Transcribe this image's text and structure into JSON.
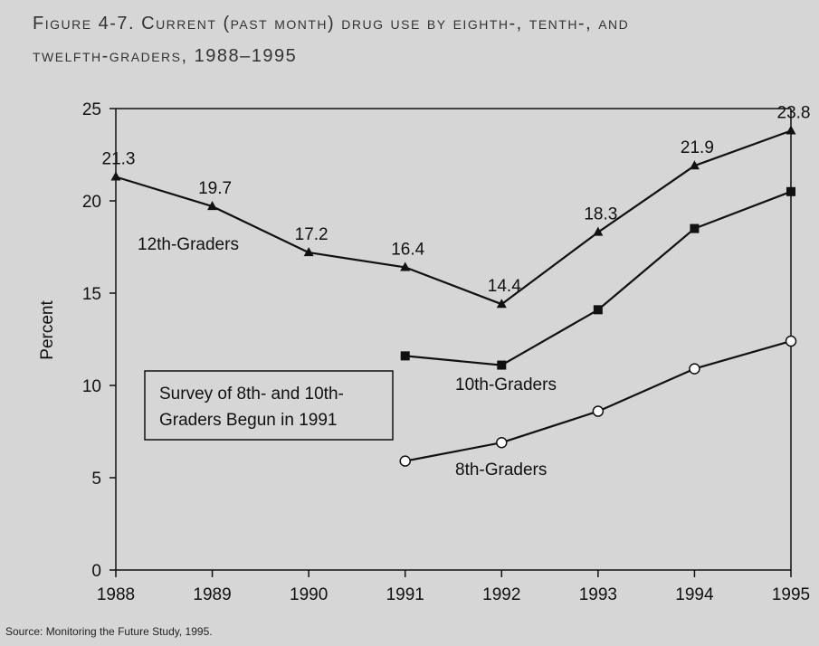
{
  "title": {
    "line1": "Figure 4-7. Current (past month) drug use by eighth-, tenth-, and",
    "line2": "twelfth-graders, 1988–1995"
  },
  "source": "Source: Monitoring the Future Study, 1995.",
  "note": {
    "line1": "Survey of 8th- and 10th-",
    "line2": "Graders Begun in 1991"
  },
  "chart_data": {
    "type": "line",
    "title": "Figure 4-7. Current (past month) drug use by eighth-, tenth-, and twelfth-graders, 1988–1995",
    "xlabel": "",
    "ylabel": "Percent",
    "x": [
      1988,
      1989,
      1990,
      1991,
      1992,
      1993,
      1994,
      1995
    ],
    "x_tick_labels": [
      "1988",
      "1989",
      "1990",
      "1991",
      "1992",
      "1993",
      "1994",
      "1995"
    ],
    "ylim": [
      0,
      25
    ],
    "y_ticks": [
      0,
      5,
      10,
      15,
      20,
      25
    ],
    "grid": false,
    "series": [
      {
        "name": "12th-Graders",
        "marker": "triangle",
        "x": [
          1988,
          1989,
          1990,
          1991,
          1992,
          1993,
          1994,
          1995
        ],
        "values": [
          21.3,
          19.7,
          17.2,
          16.4,
          14.4,
          18.3,
          21.9,
          23.8
        ],
        "data_labels": [
          "21.3",
          "19.7",
          "17.2",
          "16.4",
          "14.4",
          "18.3",
          "21.9",
          "23.8"
        ]
      },
      {
        "name": "10th-Graders",
        "marker": "square",
        "x": [
          1991,
          1992,
          1993,
          1994,
          1995
        ],
        "values": [
          11.6,
          11.1,
          14.1,
          18.5,
          20.5
        ]
      },
      {
        "name": "8th-Graders",
        "marker": "circle",
        "x": [
          1991,
          1992,
          1993,
          1994,
          1995
        ],
        "values": [
          5.9,
          6.9,
          8.6,
          10.9,
          12.4
        ]
      }
    ]
  }
}
